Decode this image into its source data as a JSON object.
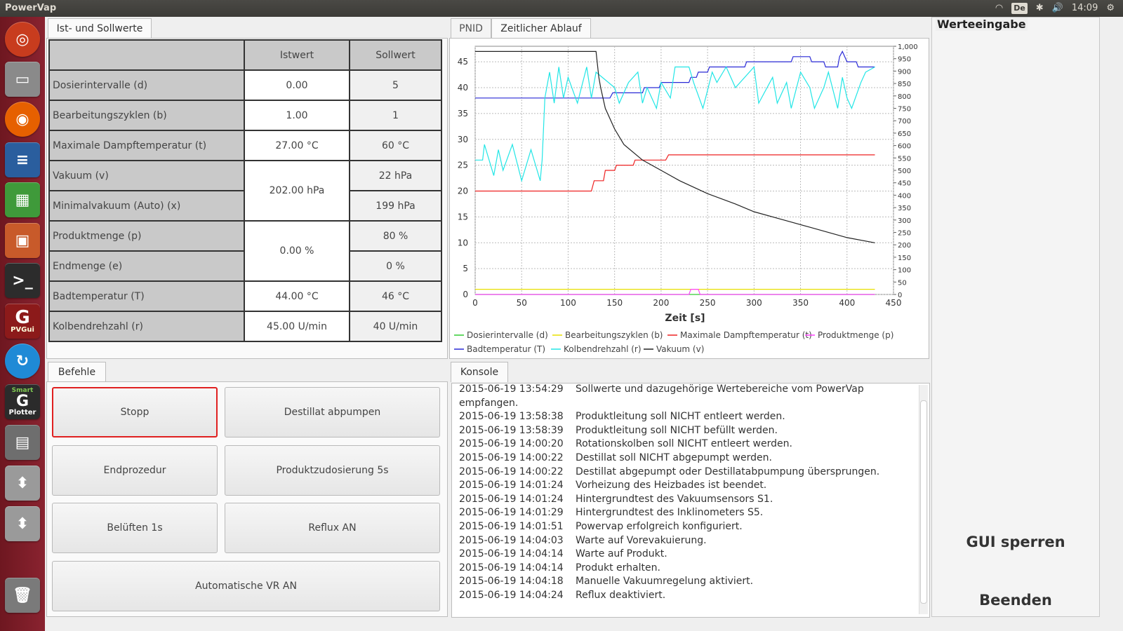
{
  "app": {
    "title": "PowerVap"
  },
  "tray": {
    "keyboard": "De",
    "time": "14:09"
  },
  "tabs_top_left": [
    {
      "label": "Ist- und Sollwerte"
    }
  ],
  "table": {
    "headers": [
      "Istwert",
      "Sollwert"
    ],
    "rows": [
      {
        "label": "Dosierintervalle (d)",
        "ist": "0.00",
        "soll": "5"
      },
      {
        "label": "Bearbeitungszyklen (b)",
        "ist": "1.00",
        "soll": "1"
      },
      {
        "label": "Maximale Dampftemperatur (t)",
        "ist": "27.00 °C",
        "soll": "60 °C"
      },
      {
        "label": "Vakuum (v)",
        "ist": "202.00 hPa",
        "soll": "22 hPa"
      },
      {
        "label": "Minimalvakuum (Auto) (x)",
        "ist": "",
        "soll": "199 hPa"
      },
      {
        "label": "Produktmenge (p)",
        "ist": "0.00 %",
        "soll": "80 %"
      },
      {
        "label": "Endmenge (e)",
        "ist": "",
        "soll": "0 %"
      },
      {
        "label": "Badtemperatur (T)",
        "ist": "44.00 °C",
        "soll": "46 °C"
      },
      {
        "label": "Kolbendrehzahl (r)",
        "ist": "45.00 U/min",
        "soll": "40 U/min"
      }
    ]
  },
  "befehle": {
    "tab": "Befehle",
    "buttons": [
      "Stopp",
      "Destillat abpumpen",
      "Endprozedur",
      "Produktzudosierung 5s",
      "Belüften 1s",
      "Reflux AN",
      "Automatische VR AN"
    ]
  },
  "chart_tabs": [
    "PNID",
    "Zeitlicher Ablauf"
  ],
  "chart_data": {
    "type": "line",
    "xlabel": "Zeit [s]",
    "xlim": [
      0,
      450
    ],
    "ylim_left": [
      0,
      48
    ],
    "ylim_right": [
      0,
      1000
    ],
    "x_ticks": [
      "0",
      "50",
      "100",
      "150",
      "200",
      "250",
      "300",
      "350",
      "400",
      "450"
    ],
    "y_ticks_left": [
      "0",
      "5",
      "10",
      "15",
      "20",
      "25",
      "30",
      "35",
      "40",
      "45"
    ],
    "y_ticks_right": [
      "0",
      "50",
      "100",
      "150",
      "200",
      "250",
      "300",
      "350",
      "400",
      "450",
      "500",
      "550",
      "600",
      "650",
      "700",
      "750",
      "800",
      "850",
      "900",
      "950",
      "1,000"
    ],
    "grid": true,
    "legend_position": "bottom",
    "series": [
      {
        "name": "Dosierintervalle (d)",
        "color": "#33cc33",
        "x": [
          0,
          430
        ],
        "y": [
          0,
          0
        ]
      },
      {
        "name": "Bearbeitungszyklen (b)",
        "color": "#e8e000",
        "x": [
          0,
          430
        ],
        "y": [
          1,
          1
        ]
      },
      {
        "name": "Maximale Dampftemperatur (t)",
        "color": "#ee2222",
        "x": [
          0,
          125,
          128,
          138,
          140,
          150,
          152,
          170,
          172,
          205,
          208,
          430
        ],
        "y": [
          20,
          20,
          22,
          22,
          24,
          24,
          25,
          25,
          26,
          26,
          27,
          27
        ]
      },
      {
        "name": "Produktmenge (p)",
        "color": "#ff44ff",
        "x": [
          0,
          230,
          232,
          240,
          242,
          430
        ],
        "y": [
          0,
          0,
          1,
          1,
          0,
          0
        ]
      },
      {
        "name": "Badtemperatur (T)",
        "color": "#2a2ad6",
        "x": [
          0,
          145,
          148,
          180,
          182,
          198,
          200,
          230,
          232,
          238,
          240,
          250,
          252,
          290,
          292,
          340,
          342,
          360,
          362,
          375,
          377,
          390,
          392,
          395,
          400,
          410,
          412,
          430
        ],
        "y": [
          38,
          38,
          39,
          39,
          40,
          40,
          41,
          41,
          42,
          42,
          43,
          43,
          44,
          44,
          45,
          45,
          46,
          46,
          45,
          45,
          44,
          44,
          46,
          47,
          45,
          45,
          44,
          44
        ]
      },
      {
        "name": "Kolbendrehzahl (r)",
        "color": "#22e6e6",
        "x": [
          0,
          8,
          10,
          20,
          25,
          30,
          40,
          50,
          60,
          70,
          72,
          75,
          80,
          85,
          90,
          95,
          100,
          110,
          120,
          125,
          130,
          150,
          155,
          165,
          175,
          180,
          185,
          195,
          200,
          210,
          215,
          230,
          235,
          245,
          255,
          260,
          270,
          280,
          300,
          305,
          320,
          325,
          335,
          340,
          350,
          360,
          365,
          375,
          380,
          390,
          395,
          400,
          405,
          415,
          420,
          430
        ],
        "y": [
          26,
          26,
          29,
          23,
          28,
          24,
          29,
          22,
          28,
          22,
          26,
          38,
          43,
          37,
          44,
          38,
          42,
          37,
          44,
          38,
          43,
          40,
          37,
          41,
          43,
          37,
          40,
          36,
          41,
          38,
          44,
          44,
          41,
          36,
          43,
          41,
          44,
          40,
          44,
          37,
          42,
          37,
          41,
          36,
          43,
          40,
          36,
          40,
          43,
          36,
          42,
          38,
          36,
          41,
          43,
          44
        ]
      },
      {
        "name": "Vakuum (v)",
        "color": "#222222",
        "x": [
          0,
          130,
          133,
          135,
          140,
          150,
          160,
          180,
          200,
          220,
          250,
          280,
          300,
          330,
          360,
          400,
          430
        ],
        "y": [
          47,
          47,
          42,
          40,
          36,
          32,
          29,
          26,
          24,
          22,
          19.5,
          17.5,
          16,
          14.5,
          13,
          11,
          10
        ]
      }
    ]
  },
  "konsole": {
    "tab": "Konsole",
    "lines": [
      {
        "ts": "2015-06-19 13:54:29",
        "msg": "Sollwerte und dazugehörige Wertebereiche vom PowerVap"
      },
      {
        "ts": "empfangen.",
        "msg": ""
      },
      {
        "ts": "2015-06-19 13:58:38",
        "msg": "Produktleitung soll NICHT entleert werden."
      },
      {
        "ts": "2015-06-19 13:58:39",
        "msg": "Produktleitung soll NICHT befüllt werden."
      },
      {
        "ts": "2015-06-19 14:00:20",
        "msg": "Rotationskolben soll NICHT entleert werden."
      },
      {
        "ts": "2015-06-19 14:00:22",
        "msg": "Destillat soll NICHT abgepumpt werden."
      },
      {
        "ts": "2015-06-19 14:00:22",
        "msg": "Destillat abgepumpt oder Destillatabpumpung übersprungen."
      },
      {
        "ts": "2015-06-19 14:01:24",
        "msg": "Vorheizung des Heizbades ist beendet."
      },
      {
        "ts": "2015-06-19 14:01:24",
        "msg": "Hintergrundtest des Vakuumsensors S1."
      },
      {
        "ts": "2015-06-19 14:01:29",
        "msg": "Hintergrundtest des Inklinometers S5."
      },
      {
        "ts": "2015-06-19 14:01:51",
        "msg": "Powervap erfolgreich konfiguriert."
      },
      {
        "ts": "2015-06-19 14:04:03",
        "msg": "Warte auf Vorevakuierung."
      },
      {
        "ts": "2015-06-19 14:04:14",
        "msg": "Warte auf Produkt."
      },
      {
        "ts": "2015-06-19 14:04:14",
        "msg": "Produkt erhalten."
      },
      {
        "ts": "2015-06-19 14:04:18",
        "msg": "Manuelle Vakuumregelung aktiviert."
      },
      {
        "ts": "2015-06-19 14:04:24",
        "msg": "Reflux deaktiviert."
      }
    ]
  },
  "werteeingabe": {
    "legend": "Werteeingabe",
    "lock_label": "GUI sperren",
    "quit_label": "Beenden"
  },
  "launcher": {
    "items": [
      "ubuntu-dash-icon",
      "files-icon",
      "firefox-icon",
      "writer-icon",
      "calc-icon",
      "impress-icon",
      "terminal-icon",
      "pvgui-icon",
      "sync-icon",
      "smart-plotter-icon",
      "device-icon",
      "usb-drive-icon",
      "usb-drive-icon",
      "trash-icon"
    ],
    "pvgui_text": "G",
    "pvgui_sub": "PVGui",
    "plotter_text": "G",
    "plotter_top": "Smart",
    "plotter_sub": "Plotter"
  }
}
